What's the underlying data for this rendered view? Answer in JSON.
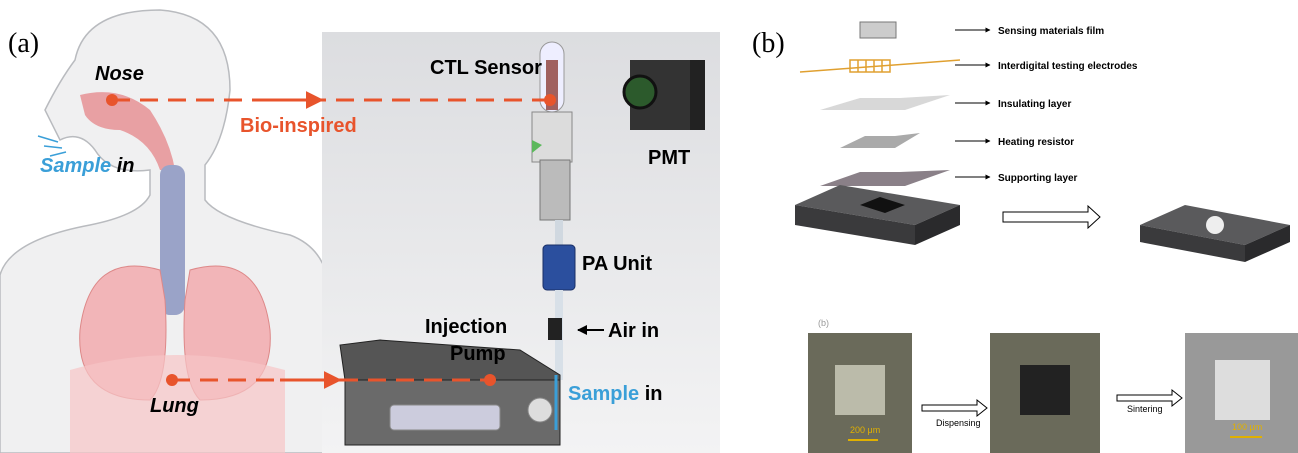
{
  "panel_a": {
    "label": "(a)",
    "nose": "Nose",
    "sample_in_nose": {
      "word": "Sample",
      "suffix": "in"
    },
    "bio_inspired": "Bio-inspired",
    "ctl_sensor": "CTL Sensor",
    "pmt": "PMT",
    "pa_unit": "PA Unit",
    "air_in": "Air in",
    "injection_pump": [
      "Injection",
      "Pump"
    ],
    "sample_in_pump": {
      "word": "Sample",
      "suffix": "in"
    },
    "lung": "Lung"
  },
  "panel_b": {
    "label": "(b)",
    "layers": [
      "Sensing materials film",
      "Interdigital testing electrodes",
      "Insulating layer",
      "Heating resistor",
      "Supporting layer"
    ],
    "sublabel": "(b)",
    "steps": [
      "Dispensing",
      "Sintering"
    ],
    "scale_bars": [
      "200 μm",
      "100 μm"
    ]
  }
}
